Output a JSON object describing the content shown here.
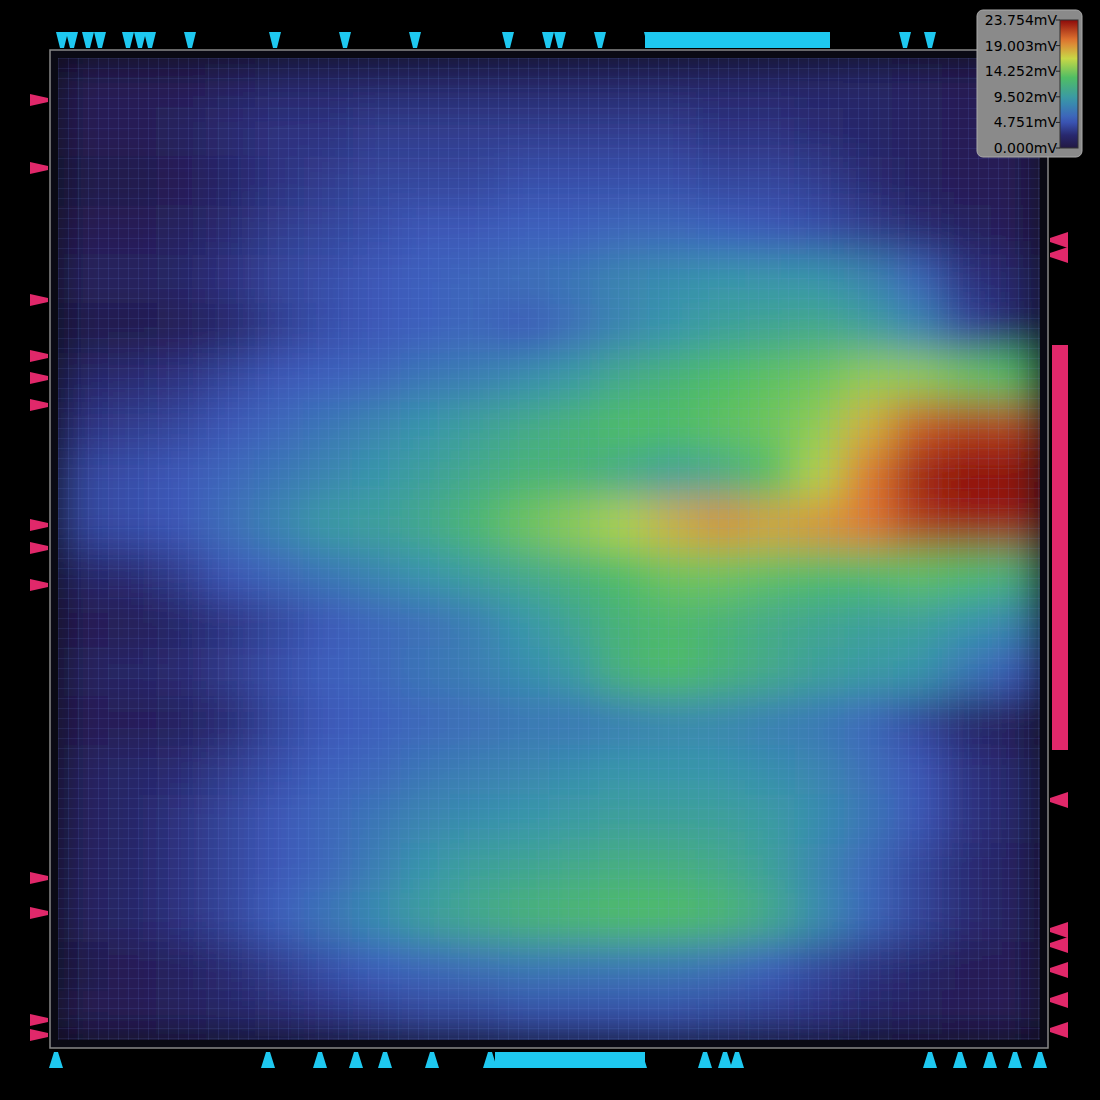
{
  "chart_data": {
    "type": "heatmap",
    "tick_labels": false,
    "color_range": [
      0,
      23.754
    ],
    "color_ticks": [
      {
        "value": 23.754,
        "label": "23.754mV"
      },
      {
        "value": 19.003,
        "label": "19.003mV"
      },
      {
        "value": 14.252,
        "label": "14.252mV"
      },
      {
        "value": 9.502,
        "label": "9.502mV"
      },
      {
        "value": 4.751,
        "label": "4.751mV"
      },
      {
        "value": 0,
        "label": "0.000mV"
      }
    ],
    "cells": [
      [
        1,
        1,
        1,
        1.5,
        2,
        2,
        2,
        2,
        2,
        2,
        2,
        2,
        2,
        2,
        2,
        2,
        2,
        1.5,
        1,
        1
      ],
      [
        1,
        1,
        1.5,
        2.5,
        3,
        3,
        3.5,
        3.5,
        3.5,
        3.5,
        3.5,
        3.5,
        3.5,
        3,
        3,
        2.5,
        2,
        1.5,
        1,
        1
      ],
      [
        0.5,
        0.5,
        1,
        2,
        3,
        3.5,
        4,
        4,
        4,
        4.5,
        4.5,
        4.5,
        4.5,
        4,
        4,
        3.5,
        2.5,
        1.5,
        1,
        1
      ],
      [
        1,
        1,
        1.5,
        2.5,
        3.5,
        4,
        4.5,
        5,
        5,
        5.5,
        5.5,
        6,
        6,
        5.5,
        5,
        4.5,
        3.5,
        2.5,
        1.5,
        1
      ],
      [
        1.5,
        1.5,
        2,
        3,
        4,
        4.5,
        5,
        5.5,
        6,
        6.5,
        7,
        8,
        8.5,
        9,
        9,
        9,
        8,
        6,
        3,
        2
      ],
      [
        0.5,
        0.5,
        1,
        2,
        3.5,
        4.5,
        5,
        5.5,
        6,
        5,
        6.5,
        8,
        9,
        10,
        10.5,
        11,
        10,
        8,
        4,
        2
      ],
      [
        2,
        2.5,
        3,
        4,
        5,
        5.5,
        6,
        7,
        7.5,
        8.5,
        9.5,
        11,
        12,
        13,
        13.5,
        14,
        15,
        15,
        14,
        13
      ],
      [
        3,
        3.5,
        4,
        5,
        6,
        7,
        8,
        9,
        10,
        11,
        12,
        13,
        13,
        13.5,
        14,
        15,
        18,
        21,
        22,
        22
      ],
      [
        4,
        4.5,
        5,
        6,
        7,
        8,
        9,
        10,
        11,
        12,
        12,
        11,
        10,
        11,
        13,
        16,
        20,
        23,
        23.7,
        23.7
      ],
      [
        4,
        4.5,
        5,
        6.5,
        8,
        9.5,
        10,
        11,
        12.5,
        14,
        15,
        16,
        18,
        19,
        18.5,
        19,
        20,
        22,
        23,
        23
      ],
      [
        2,
        2.5,
        3.5,
        5,
        6,
        7,
        8,
        9,
        10,
        11,
        12,
        13,
        14,
        14,
        13.5,
        13,
        13,
        13.5,
        13,
        12
      ],
      [
        1,
        1,
        2,
        3,
        4,
        5,
        6,
        6.5,
        7.5,
        9,
        10.5,
        12,
        12.5,
        12,
        11,
        10.5,
        10,
        10,
        9,
        8
      ],
      [
        1.5,
        2,
        2.5,
        3.5,
        4.5,
        5.5,
        6,
        7,
        7.5,
        8.5,
        9.5,
        12,
        13,
        12,
        11,
        10,
        9.5,
        9,
        7,
        5
      ],
      [
        1,
        1,
        1.5,
        2.5,
        4,
        5,
        5.5,
        6,
        6.5,
        7,
        7,
        7.5,
        8,
        8,
        7.5,
        7,
        6,
        4,
        2,
        1
      ],
      [
        1.5,
        2,
        2.5,
        3.5,
        4.5,
        5.5,
        6,
        7,
        7.5,
        8,
        8.5,
        9,
        9,
        9,
        8.5,
        8,
        6.5,
        5,
        3,
        2
      ],
      [
        1.5,
        2,
        3,
        4,
        5,
        6,
        7,
        8,
        8.5,
        9,
        9.5,
        10,
        10,
        10,
        9.5,
        8.5,
        7,
        5,
        3,
        2
      ],
      [
        1.5,
        2,
        3,
        4,
        5,
        6,
        7.5,
        9,
        10,
        10.5,
        11,
        11.5,
        11.5,
        11,
        10,
        8,
        6,
        4,
        2.5,
        1.5
      ],
      [
        1.5,
        2,
        3,
        4,
        5.5,
        7,
        8.5,
        10,
        11,
        12,
        12.5,
        13,
        13,
        12.5,
        11,
        8.5,
        6,
        4,
        2.5,
        1.5
      ],
      [
        0.5,
        1,
        1.5,
        2.5,
        3.5,
        4.5,
        5.5,
        6,
        6.5,
        7,
        7,
        7,
        7,
        6.5,
        5.5,
        4,
        3,
        2,
        1,
        1
      ],
      [
        1,
        1,
        1.5,
        2,
        2.5,
        3,
        3.5,
        4,
        4,
        4.5,
        4.5,
        4.5,
        4.5,
        4,
        3.5,
        3,
        2,
        1.5,
        1,
        1
      ]
    ]
  }
}
